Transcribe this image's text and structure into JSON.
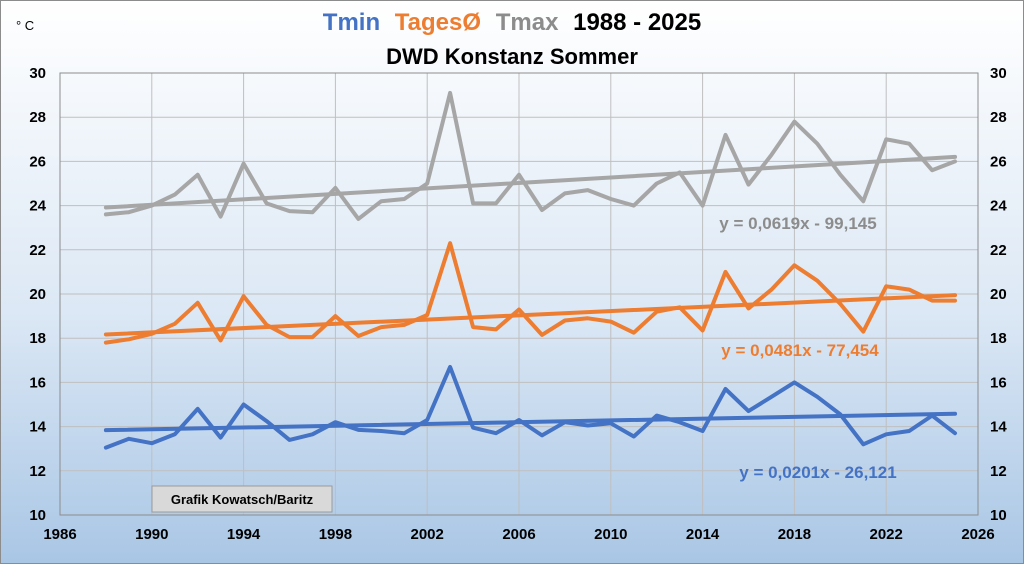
{
  "chart_data": {
    "type": "line",
    "title": {
      "tmin": "Tmin",
      "tages": "TagesØ",
      "tmax": "Tmax",
      "period": "1988 - 2025"
    },
    "subtitle": "DWD Konstanz Sommer",
    "ylabel": "° C",
    "credit": "Grafik Kowatsch/Baritz",
    "xlim": [
      1986,
      2026
    ],
    "ylim": [
      10,
      30
    ],
    "x_ticks": [
      1986,
      1990,
      1994,
      1998,
      2002,
      2006,
      2010,
      2014,
      2018,
      2022,
      2026
    ],
    "y_ticks": [
      10,
      12,
      14,
      16,
      18,
      20,
      22,
      24,
      26,
      28,
      30
    ],
    "grid": true,
    "x": [
      1988,
      1989,
      1990,
      1991,
      1992,
      1993,
      1994,
      1995,
      1996,
      1997,
      1998,
      1999,
      2000,
      2001,
      2002,
      2003,
      2004,
      2005,
      2006,
      2007,
      2008,
      2009,
      2010,
      2011,
      2012,
      2013,
      2014,
      2015,
      2016,
      2017,
      2018,
      2019,
      2020,
      2021,
      2022,
      2023,
      2024,
      2025
    ],
    "series": [
      {
        "key": "tmax",
        "color": "#a6a6a6",
        "values": [
          23.6,
          23.7,
          24.0,
          24.5,
          25.4,
          23.5,
          25.9,
          24.1,
          23.75,
          23.7,
          24.8,
          23.4,
          24.2,
          24.3,
          25.0,
          29.1,
          24.1,
          24.1,
          25.4,
          23.8,
          24.55,
          24.7,
          24.3,
          24.0,
          25.0,
          25.5,
          24.0,
          27.2,
          24.95,
          26.3,
          27.8,
          26.8,
          25.4,
          24.2,
          27.0,
          26.8,
          25.6,
          26.0
        ],
        "trend": {
          "slope": 0.0619,
          "intercept": -99.145,
          "equation": "y = 0,0619x - 99,145"
        }
      },
      {
        "key": "tages",
        "color": "#ed7d31",
        "values": [
          17.8,
          17.95,
          18.2,
          18.65,
          19.6,
          17.9,
          19.9,
          18.6,
          18.05,
          18.05,
          19.0,
          18.1,
          18.5,
          18.6,
          19.05,
          22.3,
          18.5,
          18.4,
          19.3,
          18.15,
          18.8,
          18.9,
          18.75,
          18.25,
          19.2,
          19.4,
          18.35,
          21.0,
          19.35,
          20.2,
          21.3,
          20.6,
          19.55,
          18.3,
          20.35,
          20.2,
          19.7,
          19.7
        ],
        "trend": {
          "slope": 0.0481,
          "intercept": -77.454,
          "equation": "y = 0,0481x - 77,454"
        }
      },
      {
        "key": "tmin",
        "color": "#4472c4",
        "values": [
          13.05,
          13.45,
          13.25,
          13.65,
          14.8,
          13.5,
          15.0,
          14.25,
          13.4,
          13.65,
          14.2,
          13.85,
          13.8,
          13.7,
          14.3,
          16.7,
          13.95,
          13.7,
          14.3,
          13.6,
          14.2,
          14.05,
          14.15,
          13.55,
          14.5,
          14.2,
          13.8,
          15.7,
          14.7,
          15.35,
          16.0,
          15.35,
          14.55,
          13.2,
          13.65,
          13.8,
          14.5,
          13.7
        ],
        "trend": {
          "slope": 0.0201,
          "intercept": -26.121,
          "equation": "y = 0,0201x - 26,121"
        }
      }
    ]
  }
}
